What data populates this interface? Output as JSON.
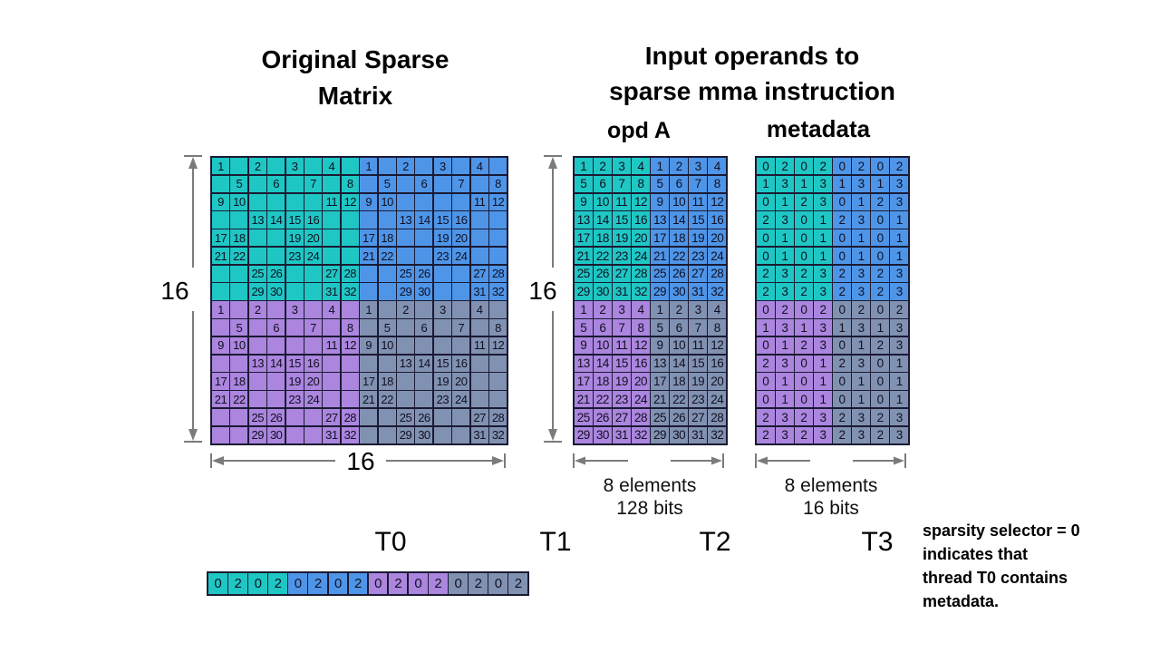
{
  "palette": {
    "teal": "#1fc7c4",
    "blue": "#4e95e8",
    "purple": "#ab85de",
    "slate": "#8191b1",
    "border": "#1a1a33",
    "arrow": "#7b7b7b"
  },
  "titles": {
    "original_line1": "Original Sparse",
    "original_line2": "Matrix",
    "input_line1": "Input operands to",
    "input_line2": "sparse mma instruction",
    "opd_a": "opd A",
    "metadata": "metadata"
  },
  "dimension_labels": {
    "matrix_height": "16",
    "matrix_width": "16",
    "opd_height": "16",
    "opd_width_line1": "8 elements",
    "opd_width_line2": "128 bits",
    "meta_width_line1": "8 elements",
    "meta_width_line2": "16 bits"
  },
  "thread_labels": [
    "T0",
    "T1",
    "T2",
    "T3"
  ],
  "note_lines": [
    "sparsity selector = 0",
    "indicates that",
    "thread T0 contains",
    "metadata."
  ],
  "grids": {
    "original": {
      "cols": 16,
      "split_row": 8,
      "split_col": 8,
      "quadrant_colors": {
        "tl": "teal",
        "tr": "blue",
        "bl": "purple",
        "br": "slate"
      },
      "cell_name": "original-matrix-cell",
      "rows": [
        [
          "1",
          "",
          "2",
          "",
          "3",
          "",
          "4",
          "",
          "1",
          "",
          "2",
          "",
          "3",
          "",
          "4",
          ""
        ],
        [
          "",
          "5",
          "",
          "6",
          "",
          "7",
          "",
          "8",
          "",
          "5",
          "",
          "6",
          "",
          "7",
          "",
          "8"
        ],
        [
          "9",
          "10",
          "",
          "",
          "",
          "",
          "11",
          "12",
          "9",
          "10",
          "",
          "",
          "",
          "",
          "11",
          "12"
        ],
        [
          "",
          "",
          "13",
          "14",
          "15",
          "16",
          "",
          "",
          "",
          "",
          "13",
          "14",
          "15",
          "16",
          "",
          ""
        ],
        [
          "17",
          "18",
          "",
          "",
          "19",
          "20",
          "",
          "",
          "17",
          "18",
          "",
          "",
          "19",
          "20",
          "",
          ""
        ],
        [
          "21",
          "22",
          "",
          "",
          "23",
          "24",
          "",
          "",
          "21",
          "22",
          "",
          "",
          "23",
          "24",
          "",
          ""
        ],
        [
          "",
          "",
          "25",
          "26",
          "",
          "",
          "27",
          "28",
          "",
          "",
          "25",
          "26",
          "",
          "",
          "27",
          "28"
        ],
        [
          "",
          "",
          "29",
          "30",
          "",
          "",
          "31",
          "32",
          "",
          "",
          "29",
          "30",
          "",
          "",
          "31",
          "32"
        ],
        [
          "1",
          "",
          "2",
          "",
          "3",
          "",
          "4",
          "",
          "1",
          "",
          "2",
          "",
          "3",
          "",
          "4",
          ""
        ],
        [
          "",
          "5",
          "",
          "6",
          "",
          "7",
          "",
          "8",
          "",
          "5",
          "",
          "6",
          "",
          "7",
          "",
          "8"
        ],
        [
          "9",
          "10",
          "",
          "",
          "",
          "",
          "11",
          "12",
          "9",
          "10",
          "",
          "",
          "",
          "",
          "11",
          "12"
        ],
        [
          "",
          "",
          "13",
          "14",
          "15",
          "16",
          "",
          "",
          "",
          "",
          "13",
          "14",
          "15",
          "16",
          "",
          ""
        ],
        [
          "17",
          "18",
          "",
          "",
          "19",
          "20",
          "",
          "",
          "17",
          "18",
          "",
          "",
          "19",
          "20",
          "",
          ""
        ],
        [
          "21",
          "22",
          "",
          "",
          "23",
          "24",
          "",
          "",
          "21",
          "22",
          "",
          "",
          "23",
          "24",
          "",
          ""
        ],
        [
          "",
          "",
          "25",
          "26",
          "",
          "",
          "27",
          "28",
          "",
          "",
          "25",
          "26",
          "",
          "",
          "27",
          "28"
        ],
        [
          "",
          "",
          "29",
          "30",
          "",
          "",
          "31",
          "32",
          "",
          "",
          "29",
          "30",
          "",
          "",
          "31",
          "32"
        ]
      ]
    },
    "opd_a": {
      "cols": 8,
      "split_row": 8,
      "split_col": 4,
      "quadrant_colors": {
        "tl": "teal",
        "tr": "blue",
        "bl": "purple",
        "br": "slate"
      },
      "cell_name": "opd-a-cell",
      "rows": [
        [
          "1",
          "2",
          "3",
          "4",
          "1",
          "2",
          "3",
          "4"
        ],
        [
          "5",
          "6",
          "7",
          "8",
          "5",
          "6",
          "7",
          "8"
        ],
        [
          "9",
          "10",
          "11",
          "12",
          "9",
          "10",
          "11",
          "12"
        ],
        [
          "13",
          "14",
          "15",
          "16",
          "13",
          "14",
          "15",
          "16"
        ],
        [
          "17",
          "18",
          "19",
          "20",
          "17",
          "18",
          "19",
          "20"
        ],
        [
          "21",
          "22",
          "23",
          "24",
          "21",
          "22",
          "23",
          "24"
        ],
        [
          "25",
          "26",
          "27",
          "28",
          "25",
          "26",
          "27",
          "28"
        ],
        [
          "29",
          "30",
          "31",
          "32",
          "29",
          "30",
          "31",
          "32"
        ],
        [
          "1",
          "2",
          "3",
          "4",
          "1",
          "2",
          "3",
          "4"
        ],
        [
          "5",
          "6",
          "7",
          "8",
          "5",
          "6",
          "7",
          "8"
        ],
        [
          "9",
          "10",
          "11",
          "12",
          "9",
          "10",
          "11",
          "12"
        ],
        [
          "13",
          "14",
          "15",
          "16",
          "13",
          "14",
          "15",
          "16"
        ],
        [
          "17",
          "18",
          "19",
          "20",
          "17",
          "18",
          "19",
          "20"
        ],
        [
          "21",
          "22",
          "23",
          "24",
          "21",
          "22",
          "23",
          "24"
        ],
        [
          "25",
          "26",
          "27",
          "28",
          "25",
          "26",
          "27",
          "28"
        ],
        [
          "29",
          "30",
          "31",
          "32",
          "29",
          "30",
          "31",
          "32"
        ]
      ]
    },
    "metadata": {
      "cols": 8,
      "split_row": 8,
      "split_col": 4,
      "quadrant_colors": {
        "tl": "teal",
        "tr": "blue",
        "bl": "purple",
        "br": "slate"
      },
      "cell_name": "metadata-cell",
      "rows": [
        [
          "0",
          "2",
          "0",
          "2",
          "0",
          "2",
          "0",
          "2"
        ],
        [
          "1",
          "3",
          "1",
          "3",
          "1",
          "3",
          "1",
          "3"
        ],
        [
          "0",
          "1",
          "2",
          "3",
          "0",
          "1",
          "2",
          "3"
        ],
        [
          "2",
          "3",
          "0",
          "1",
          "2",
          "3",
          "0",
          "1"
        ],
        [
          "0",
          "1",
          "0",
          "1",
          "0",
          "1",
          "0",
          "1"
        ],
        [
          "0",
          "1",
          "0",
          "1",
          "0",
          "1",
          "0",
          "1"
        ],
        [
          "2",
          "3",
          "2",
          "3",
          "2",
          "3",
          "2",
          "3"
        ],
        [
          "2",
          "3",
          "2",
          "3",
          "2",
          "3",
          "2",
          "3"
        ],
        [
          "0",
          "2",
          "0",
          "2",
          "0",
          "2",
          "0",
          "2"
        ],
        [
          "1",
          "3",
          "1",
          "3",
          "1",
          "3",
          "1",
          "3"
        ],
        [
          "0",
          "1",
          "2",
          "3",
          "0",
          "1",
          "2",
          "3"
        ],
        [
          "2",
          "3",
          "0",
          "1",
          "2",
          "3",
          "0",
          "1"
        ],
        [
          "0",
          "1",
          "0",
          "1",
          "0",
          "1",
          "0",
          "1"
        ],
        [
          "0",
          "1",
          "0",
          "1",
          "0",
          "1",
          "0",
          "1"
        ],
        [
          "2",
          "3",
          "2",
          "3",
          "2",
          "3",
          "2",
          "3"
        ],
        [
          "2",
          "3",
          "2",
          "3",
          "2",
          "3",
          "2",
          "3"
        ]
      ]
    },
    "t0_strip": {
      "cols": 16,
      "group_size": 4,
      "group_colors": [
        "teal",
        "blue",
        "purple",
        "slate"
      ],
      "cell_name": "t0-metadata-strip-cell",
      "rows": [
        [
          "0",
          "2",
          "0",
          "2",
          "0",
          "2",
          "0",
          "2",
          "0",
          "2",
          "0",
          "2",
          "0",
          "2",
          "0",
          "2"
        ]
      ]
    }
  }
}
